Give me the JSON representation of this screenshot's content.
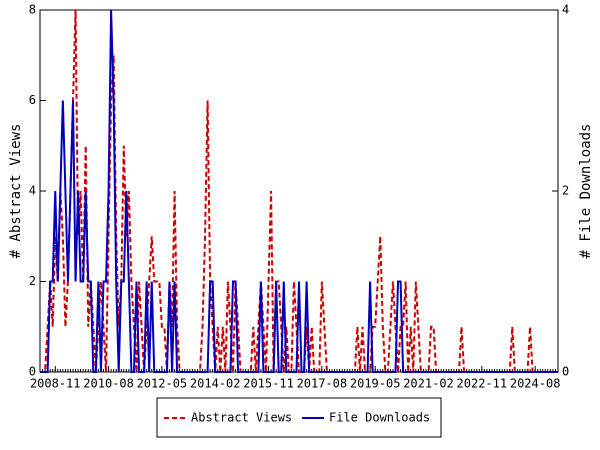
{
  "chart_data": {
    "type": "line",
    "x": [
      "2008-05",
      "2008-06",
      "2008-07",
      "2008-08",
      "2008-09",
      "2008-10",
      "2008-11",
      "2008-12",
      "2009-01",
      "2009-02",
      "2009-03",
      "2009-04",
      "2009-05",
      "2009-06",
      "2009-07",
      "2009-08",
      "2009-09",
      "2009-10",
      "2009-11",
      "2009-12",
      "2010-01",
      "2010-02",
      "2010-03",
      "2010-04",
      "2010-05",
      "2010-06",
      "2010-07",
      "2010-08",
      "2010-09",
      "2010-10",
      "2010-11",
      "2010-12",
      "2011-01",
      "2011-02",
      "2011-03",
      "2011-04",
      "2011-05",
      "2011-06",
      "2011-07",
      "2011-08",
      "2011-09",
      "2011-10",
      "2011-11",
      "2011-12",
      "2012-01",
      "2012-02",
      "2012-03",
      "2012-04",
      "2012-05",
      "2012-06",
      "2012-07",
      "2012-08",
      "2012-09",
      "2012-10",
      "2012-11",
      "2012-12",
      "2013-01",
      "2013-02",
      "2013-03",
      "2013-04",
      "2013-05",
      "2013-06",
      "2013-07",
      "2013-08",
      "2013-09",
      "2013-10",
      "2013-11",
      "2013-12",
      "2014-01",
      "2014-02",
      "2014-03",
      "2014-04",
      "2014-05",
      "2014-06",
      "2014-07",
      "2014-08",
      "2014-09",
      "2014-10",
      "2014-11",
      "2014-12",
      "2015-01",
      "2015-02",
      "2015-03",
      "2015-04",
      "2015-05",
      "2015-06",
      "2015-07",
      "2015-08",
      "2015-09",
      "2015-10",
      "2015-11",
      "2015-12",
      "2016-01",
      "2016-02",
      "2016-03",
      "2016-04",
      "2016-05",
      "2016-06",
      "2016-07",
      "2016-08",
      "2016-09",
      "2016-10",
      "2016-11",
      "2016-12",
      "2017-01",
      "2017-02",
      "2017-03",
      "2017-04",
      "2017-05",
      "2017-06",
      "2017-07",
      "2017-08",
      "2017-09",
      "2017-10",
      "2017-11",
      "2017-12",
      "2018-01",
      "2018-02",
      "2018-03",
      "2018-04",
      "2018-05",
      "2018-06",
      "2018-07",
      "2018-08",
      "2018-09",
      "2018-10",
      "2018-11",
      "2018-12",
      "2019-01",
      "2019-02",
      "2019-03",
      "2019-04",
      "2019-05",
      "2019-06",
      "2019-07",
      "2019-08",
      "2019-09",
      "2019-10",
      "2019-11",
      "2019-12",
      "2020-01",
      "2020-02",
      "2020-03",
      "2020-04",
      "2020-05",
      "2020-06",
      "2020-07",
      "2020-08",
      "2020-09",
      "2020-10",
      "2020-11",
      "2020-12",
      "2021-01",
      "2021-02",
      "2021-03",
      "2021-04",
      "2021-05",
      "2021-06",
      "2021-07",
      "2021-08",
      "2021-09",
      "2021-10",
      "2021-11",
      "2021-12",
      "2022-01",
      "2022-02",
      "2022-03",
      "2022-04",
      "2022-05",
      "2022-06",
      "2022-07",
      "2022-08",
      "2022-09",
      "2022-10",
      "2022-11",
      "2022-12",
      "2023-01",
      "2023-02",
      "2023-03",
      "2023-04",
      "2023-05",
      "2023-06",
      "2023-07",
      "2023-08",
      "2023-09",
      "2023-10",
      "2023-11",
      "2023-12",
      "2024-01",
      "2024-02",
      "2024-03",
      "2024-04",
      "2024-05",
      "2024-06",
      "2024-07",
      "2024-08",
      "2024-09",
      "2024-10",
      "2024-11",
      "2024-12",
      "2025-01",
      "2025-02",
      "2025-03",
      "2025-04",
      "2025-05"
    ],
    "series": [
      {
        "name": "Abstract Views",
        "color": "#cc0000",
        "dash": true,
        "values": [
          0,
          0,
          0,
          1,
          2,
          1,
          3,
          2,
          4,
          3,
          1,
          2,
          4,
          6,
          8,
          3,
          4,
          2,
          5,
          1,
          2,
          1,
          0,
          1,
          2,
          1,
          0,
          3,
          6,
          7,
          3,
          1,
          2,
          5,
          3,
          4,
          2,
          1,
          0,
          2,
          1,
          0,
          1,
          2,
          3,
          2,
          2,
          2,
          1,
          1,
          0,
          2,
          1,
          4,
          1,
          0,
          0,
          0,
          0,
          0,
          0,
          0,
          0,
          0,
          1,
          3,
          6,
          2,
          1,
          0,
          1,
          0,
          1,
          0,
          2,
          1,
          0,
          2,
          1,
          0,
          0,
          0,
          0,
          0,
          1,
          0,
          1,
          2,
          1,
          0,
          2,
          4,
          0,
          2,
          2,
          1,
          0,
          1,
          0,
          0,
          2,
          1,
          0,
          0,
          0,
          1,
          0,
          1,
          0,
          0,
          0,
          2,
          1,
          0,
          0,
          0,
          0,
          0,
          0,
          0,
          0,
          0,
          0,
          0,
          0,
          1,
          0,
          1,
          0,
          0,
          0,
          1,
          1,
          2,
          3,
          1,
          0,
          0,
          1,
          2,
          1,
          0,
          1,
          1,
          2,
          0,
          1,
          0,
          2,
          1,
          0,
          0,
          0,
          0,
          1,
          1,
          0,
          0,
          0,
          0,
          0,
          0,
          0,
          0,
          0,
          0,
          1,
          0,
          0,
          0,
          0,
          0,
          0,
          0,
          0,
          0,
          0,
          0,
          0,
          0,
          0,
          0,
          0,
          0,
          0,
          0,
          1,
          0,
          0,
          0,
          0,
          0,
          0,
          1,
          0,
          0,
          0,
          0,
          0,
          0,
          0,
          0,
          0,
          0,
          0
        ]
      },
      {
        "name": "File Downloads",
        "color": "#0000bb",
        "dash": false,
        "axis": "y2",
        "values": [
          0,
          0,
          0,
          0,
          1,
          1,
          2,
          1,
          2,
          3,
          2,
          1,
          2,
          3,
          1,
          2,
          1,
          1,
          2,
          1,
          1,
          0,
          0,
          1,
          0,
          1,
          1,
          2,
          4,
          3,
          1,
          0,
          1,
          1,
          2,
          1,
          0,
          0,
          1,
          0,
          0,
          0,
          1,
          0,
          1,
          0,
          0,
          0,
          0,
          0,
          0,
          1,
          0,
          1,
          0,
          0,
          0,
          0,
          0,
          0,
          0,
          0,
          0,
          0,
          0,
          0,
          0,
          1,
          1,
          0,
          0,
          0,
          0,
          0,
          0,
          0,
          1,
          1,
          0,
          0,
          0,
          0,
          0,
          0,
          0,
          0,
          0,
          1,
          0,
          0,
          0,
          0,
          0,
          1,
          0,
          0,
          1,
          0,
          0,
          0,
          0,
          0,
          1,
          0,
          0,
          1,
          0,
          0,
          0,
          0,
          0,
          0,
          0,
          0,
          0,
          0,
          0,
          0,
          0,
          0,
          0,
          0,
          0,
          0,
          0,
          0,
          0,
          0,
          0,
          0,
          1,
          0,
          0,
          0,
          0,
          0,
          0,
          0,
          0,
          0,
          0,
          1,
          1,
          0,
          0,
          0,
          0,
          0,
          0,
          0,
          0,
          0,
          0,
          0,
          0,
          0,
          0,
          0,
          0,
          0,
          0,
          0,
          0,
          0,
          0,
          0,
          0,
          0,
          0,
          0,
          0,
          0,
          0,
          0,
          0,
          0,
          0,
          0,
          0,
          0,
          0,
          0,
          0,
          0,
          0,
          0,
          0,
          0,
          0,
          0,
          0,
          0,
          0,
          0,
          0,
          0,
          0,
          0,
          0,
          0,
          0,
          0,
          0,
          0,
          0
        ]
      }
    ],
    "ylabel": "# Abstract Views",
    "y2label": "# File Downloads",
    "xlim": [
      "2008-05",
      "2025-05"
    ],
    "xticks": [
      "2008-11",
      "2010-08",
      "2012-05",
      "2014-02",
      "2015-11",
      "2017-08",
      "2019-05",
      "2021-02",
      "2022-11",
      "2024-08"
    ],
    "ylim": [
      0,
      8
    ],
    "yticks": [
      0,
      2,
      4,
      6,
      8
    ],
    "y2lim": [
      0,
      4
    ],
    "y2ticks": [
      0,
      2,
      4
    ],
    "legend": "bottom"
  }
}
